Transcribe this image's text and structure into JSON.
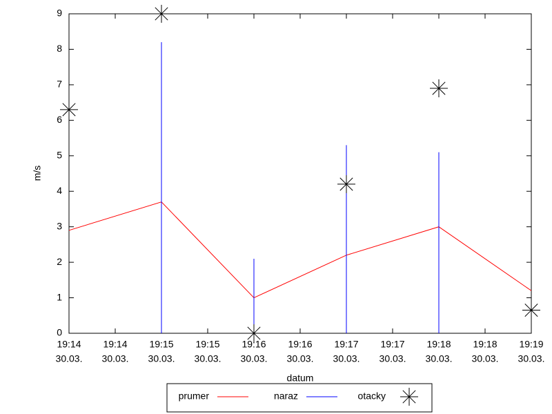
{
  "chart_data": {
    "type": "line",
    "x_label": "datum",
    "y_label": "m/s",
    "x": [
      14,
      15,
      16,
      17,
      18,
      19
    ],
    "xlim": [
      14,
      19
    ],
    "xticks": [
      {
        "value": 14,
        "label": "19:14"
      },
      {
        "value": 14.5,
        "label": "19:14"
      },
      {
        "value": 15,
        "label": "19:15"
      },
      {
        "value": 15.5,
        "label": "19:15"
      },
      {
        "value": 16,
        "label": "19:16"
      },
      {
        "value": 16.5,
        "label": "19:16"
      },
      {
        "value": 17,
        "label": "19:17"
      },
      {
        "value": 17.5,
        "label": "19:17"
      },
      {
        "value": 18,
        "label": "19:18"
      },
      {
        "value": 18.5,
        "label": "19:18"
      },
      {
        "value": 19,
        "label": "19:19"
      }
    ],
    "xtick_dates": [
      "30.03.",
      "30.03.",
      "30.03.",
      "30.03.",
      "30.03.",
      "30.03.",
      "30.03.",
      "30.03.",
      "30.03.",
      "30.03.",
      "30.03."
    ],
    "ylim": [
      0,
      9
    ],
    "yticks": [
      0,
      1,
      2,
      3,
      4,
      5,
      6,
      7,
      8,
      9
    ],
    "series": [
      {
        "name": "prumer",
        "color": "#ff0000",
        "style": "line",
        "values": [
          2.9,
          3.7,
          1.0,
          2.2,
          3.0,
          1.2
        ]
      },
      {
        "name": "naraz",
        "color": "#0000ff",
        "style": "impulses",
        "values": [
          null,
          8.2,
          2.1,
          5.3,
          5.1,
          null
        ]
      },
      {
        "name": "otacky",
        "color": "#000000",
        "style": "points",
        "values": [
          6.3,
          9.0,
          0.0,
          4.2,
          6.9,
          0.65
        ]
      }
    ]
  }
}
